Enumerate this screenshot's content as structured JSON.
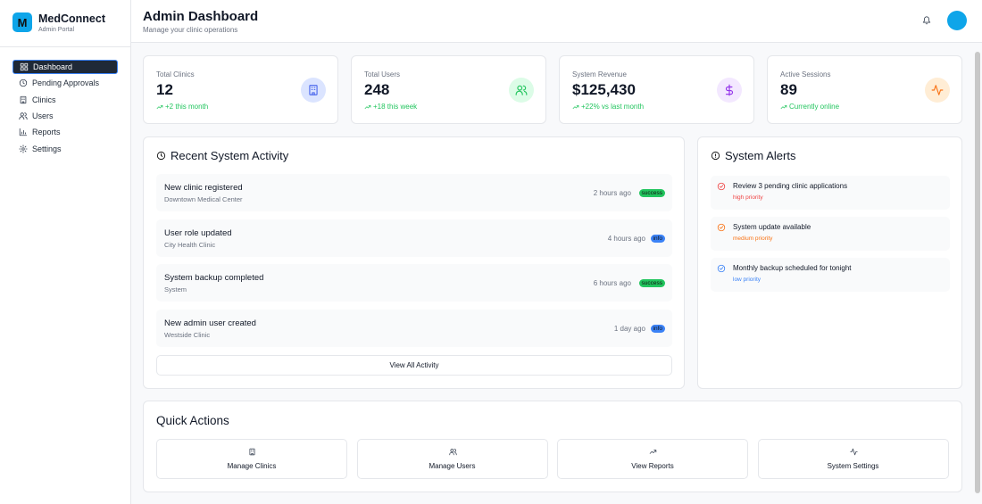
{
  "sidebar": {
    "logo": "M",
    "brand": "MedConnect",
    "subtitle": "Admin Portal",
    "nav": [
      "Dashboard",
      "Pending Approvals",
      "Clinics",
      "Users",
      "Reports",
      "Settings"
    ]
  },
  "header": {
    "title": "Admin Dashboard",
    "subtitle": "Manage your clinic operations"
  },
  "stats": [
    {
      "label": "Total Clinics",
      "value": "12",
      "change": "+2 this month"
    },
    {
      "label": "Total Users",
      "value": "248",
      "change": "+18 this week"
    },
    {
      "label": "System Revenue",
      "value": "$125,430",
      "change": "+22% vs last month"
    },
    {
      "label": "Active Sessions",
      "value": "89",
      "change": "Currently online"
    }
  ],
  "activity": {
    "title": "Recent System Activity",
    "items": [
      {
        "title": "New clinic registered",
        "subtitle": "Downtown Medical Center",
        "time": "2 hours ago",
        "status": "success"
      },
      {
        "title": "User role updated",
        "subtitle": "City Health Clinic",
        "time": "4 hours ago",
        "status": "info"
      },
      {
        "title": "System backup completed",
        "subtitle": "System",
        "time": "6 hours ago",
        "status": "success"
      },
      {
        "title": "New admin user created",
        "subtitle": "Westside Clinic",
        "time": "1 day ago",
        "status": "info"
      }
    ],
    "button": "View All Activity"
  },
  "alerts": {
    "title": "System Alerts",
    "items": [
      {
        "text": "Review 3 pending clinic applications",
        "priority": "high priority"
      },
      {
        "text": "System update available",
        "priority": "medium priority"
      },
      {
        "text": "Monthly backup scheduled for tonight",
        "priority": "low priority"
      }
    ]
  },
  "quick_actions": {
    "title": "Quick Actions",
    "items": [
      "Manage Clinics",
      "Manage Users",
      "View Reports",
      "System Settings"
    ]
  }
}
